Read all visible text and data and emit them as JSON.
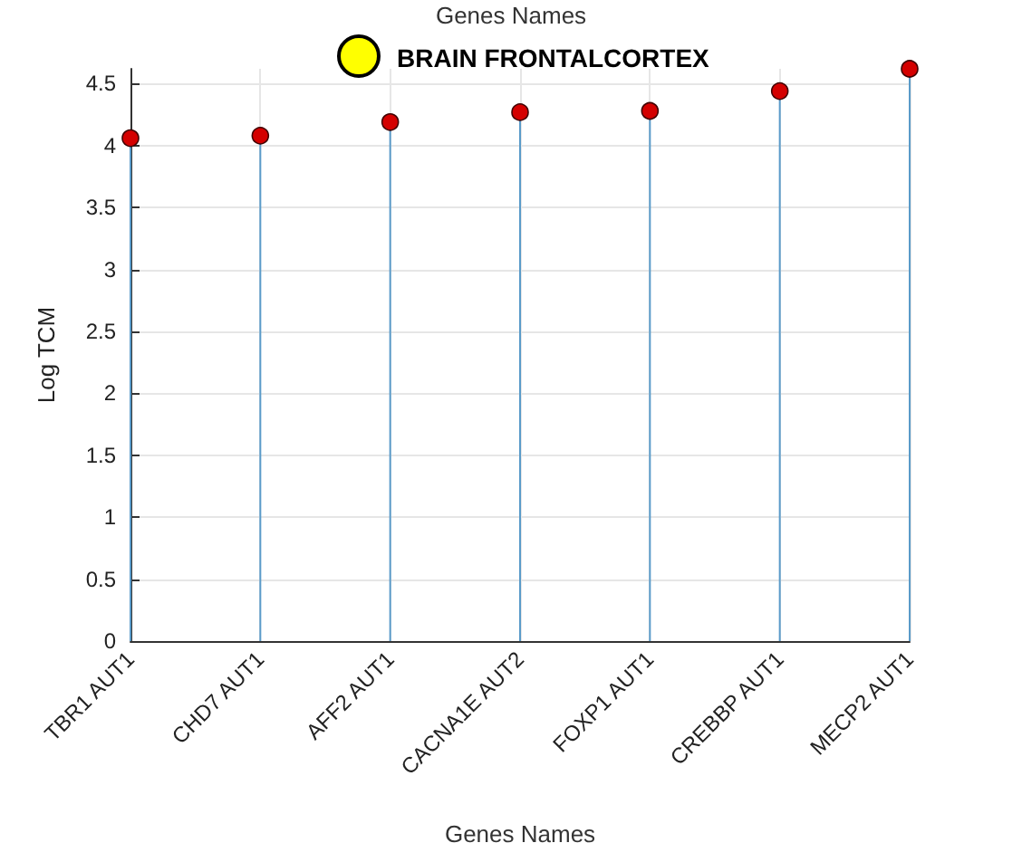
{
  "chart_data": {
    "type": "lollipop",
    "title": "BRAIN FRONTALCORTEX",
    "annotations": [
      "Genes Names"
    ],
    "xlabel": "Genes Names",
    "ylabel": "Log TCM",
    "categories": [
      "TBR1 AUT1",
      "CHD7 AUT1",
      "AFF2 AUT1",
      "CACNA1E AUT2",
      "FOXP1 AUT1",
      "CREBBP AUT1",
      "MECP2 AUT1"
    ],
    "values": [
      4.06,
      4.08,
      4.19,
      4.27,
      4.28,
      4.44,
      4.62
    ],
    "color": "#d40000",
    "ylim": [
      0,
      4.62
    ],
    "yticks": [
      0,
      0.5,
      1,
      1.5,
      2,
      2.5,
      3,
      3.5,
      4,
      4.5
    ],
    "grid": true,
    "marker": "circle"
  }
}
